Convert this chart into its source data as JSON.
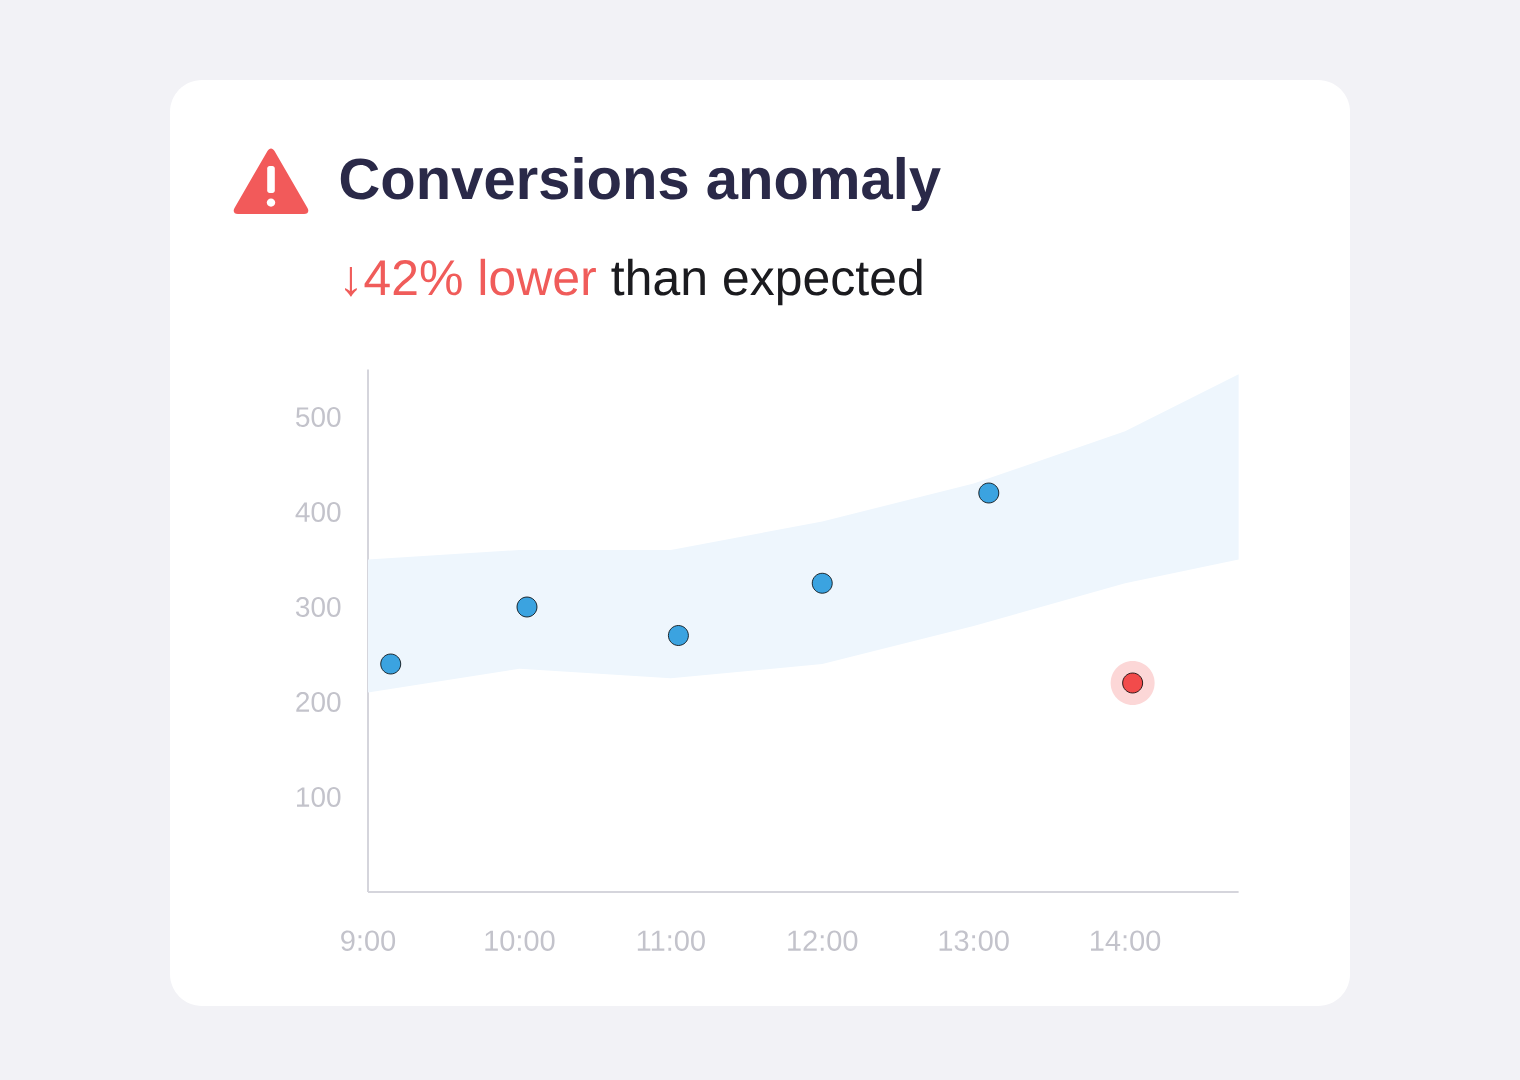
{
  "chart_data": {
    "type": "scatter",
    "title": "Conversions anomaly",
    "subtitle": "↓42% lower than expected",
    "xlim": [
      9,
      14.75
    ],
    "xticks": [
      {
        "value": 9,
        "label": "9:00"
      },
      {
        "value": 10,
        "label": "10:00"
      },
      {
        "value": 11,
        "label": "11:00"
      },
      {
        "value": 12,
        "label": "12:00"
      },
      {
        "value": 13,
        "label": "13:00"
      },
      {
        "value": 14,
        "label": "14:00"
      }
    ],
    "ylim": [
      0,
      550
    ],
    "yticks": [
      100,
      200,
      300,
      400,
      500
    ],
    "marker": "circle",
    "series": [
      {
        "type": "line",
        "color": "#eef6fd",
        "x": [
          9,
          10,
          11,
          12,
          13,
          14,
          14.75
        ],
        "values": [
          null,
          null,
          null,
          null,
          null,
          null,
          null
        ],
        "lower": [
          210,
          235,
          225,
          240,
          280,
          325,
          350
        ],
        "upper": [
          350,
          360,
          360,
          390,
          430,
          485,
          545
        ]
      },
      {
        "x": [
          9.15,
          10.05,
          11.05,
          12,
          13.1,
          14.05
        ],
        "values": [
          240,
          300,
          270,
          325,
          420,
          220
        ],
        "colors": [
          "#3ba3e0",
          "#3ba3e0",
          "#3ba3e0",
          "#3ba3e0",
          "#3ba3e0",
          "#f24b4b"
        ]
      }
    ]
  }
}
